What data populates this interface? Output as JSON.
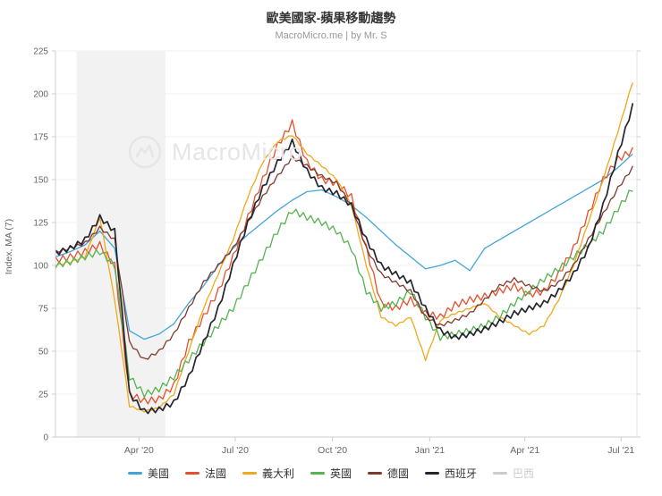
{
  "header": {
    "title": "歐美國家-蘋果移動趨勢",
    "subtitle": "MacroMicro.me | by Mr. S"
  },
  "watermark": {
    "text": "MacroMicro",
    "logo": "macromicro-mountain-logo"
  },
  "chart_data": {
    "type": "line",
    "title": "歐美國家-蘋果移動趨勢",
    "subtitle": "MacroMicro.me | by Mr. S",
    "ylabel": "Index, MA (7)",
    "ylim": [
      0,
      225
    ],
    "ytick_step": 25,
    "ytick_labels": [
      "0",
      "25",
      "50",
      "75",
      "100",
      "125",
      "150",
      "175",
      "200",
      "225"
    ],
    "x_unit": "days from series start (estimated, start ~mid-Jan 2020)",
    "x_domain": [
      0,
      550
    ],
    "xtick_labels": [
      "Apr '20",
      "Jul '20",
      "Oct '20",
      "Jan '21",
      "Apr '21",
      "Jul '21"
    ],
    "xtick_positions": [
      79,
      170,
      262,
      354,
      444,
      535
    ],
    "shaded_band": {
      "from_day": 20,
      "to_day": 104,
      "color": "#e9e9e9"
    },
    "grid": "faint-horizontal",
    "legend_position": "bottom",
    "x": [
      0,
      14,
      28,
      42,
      56,
      70,
      84,
      98,
      112,
      126,
      140,
      154,
      168,
      182,
      196,
      210,
      224,
      238,
      252,
      266,
      280,
      294,
      308,
      322,
      336,
      350,
      364,
      378,
      392,
      406,
      420,
      434,
      448,
      462,
      476,
      490,
      504,
      518,
      532,
      546
    ],
    "series": [
      {
        "id": "us",
        "name": "美國",
        "color": "#41a5dc",
        "visible": true,
        "line_width": 1.3,
        "values": [
          105,
          108,
          112,
          120,
          110,
          62,
          57,
          60,
          66,
          78,
          88,
          100,
          110,
          118,
          125,
          132,
          138,
          143,
          144,
          140,
          135,
          128,
          120,
          112,
          105,
          98,
          100,
          103,
          97,
          110,
          115,
          120,
          125,
          130,
          135,
          140,
          145,
          150,
          157,
          165
        ]
      },
      {
        "id": "france",
        "name": "法國",
        "color": "#e4502e",
        "visible": true,
        "line_width": 1.3,
        "values": [
          103,
          105,
          108,
          112,
          100,
          25,
          21,
          22,
          30,
          55,
          70,
          85,
          105,
          128,
          150,
          170,
          183,
          160,
          150,
          148,
          140,
          110,
          78,
          75,
          80,
          72,
          70,
          77,
          80,
          82,
          85,
          88,
          83,
          85,
          95,
          110,
          130,
          150,
          162,
          167
        ]
      },
      {
        "id": "italy",
        "name": "義大利",
        "color": "#f0a81d",
        "visible": true,
        "line_width": 1.3,
        "values": [
          100,
          102,
          105,
          128,
          80,
          18,
          15,
          17,
          25,
          50,
          75,
          95,
          115,
          140,
          160,
          172,
          176,
          165,
          158,
          150,
          135,
          100,
          70,
          65,
          70,
          45,
          68,
          72,
          75,
          78,
          70,
          65,
          60,
          65,
          80,
          100,
          125,
          150,
          178,
          207
        ]
      },
      {
        "id": "uk",
        "name": "英國",
        "color": "#55b350",
        "visible": true,
        "line_width": 1.3,
        "values": [
          100,
          102,
          105,
          108,
          100,
          35,
          25,
          28,
          35,
          45,
          55,
          65,
          75,
          90,
          105,
          120,
          132,
          128,
          125,
          120,
          110,
          85,
          75,
          78,
          85,
          70,
          58,
          60,
          62,
          65,
          70,
          78,
          85,
          92,
          98,
          105,
          112,
          120,
          133,
          145
        ]
      },
      {
        "id": "germany",
        "name": "德國",
        "color": "#7d3a2c",
        "visible": true,
        "line_width": 1.3,
        "values": [
          108,
          110,
          113,
          122,
          115,
          55,
          45,
          50,
          60,
          75,
          90,
          100,
          110,
          125,
          140,
          152,
          163,
          158,
          152,
          148,
          135,
          110,
          95,
          90,
          85,
          70,
          65,
          68,
          72,
          80,
          88,
          92,
          88,
          85,
          90,
          100,
          115,
          130,
          145,
          157
        ]
      },
      {
        "id": "spain",
        "name": "西班牙",
        "color": "#26242e",
        "visible": true,
        "line_width": 1.7,
        "values": [
          107,
          110,
          115,
          128,
          120,
          25,
          15,
          16,
          20,
          35,
          55,
          75,
          100,
          125,
          145,
          160,
          172,
          155,
          145,
          142,
          135,
          115,
          100,
          95,
          90,
          75,
          62,
          58,
          60,
          63,
          67,
          72,
          75,
          78,
          85,
          95,
          110,
          135,
          165,
          193
        ]
      },
      {
        "id": "brazil",
        "name": "巴西",
        "color": "#cccccc",
        "visible": false,
        "line_width": 1.3,
        "values": []
      }
    ]
  }
}
